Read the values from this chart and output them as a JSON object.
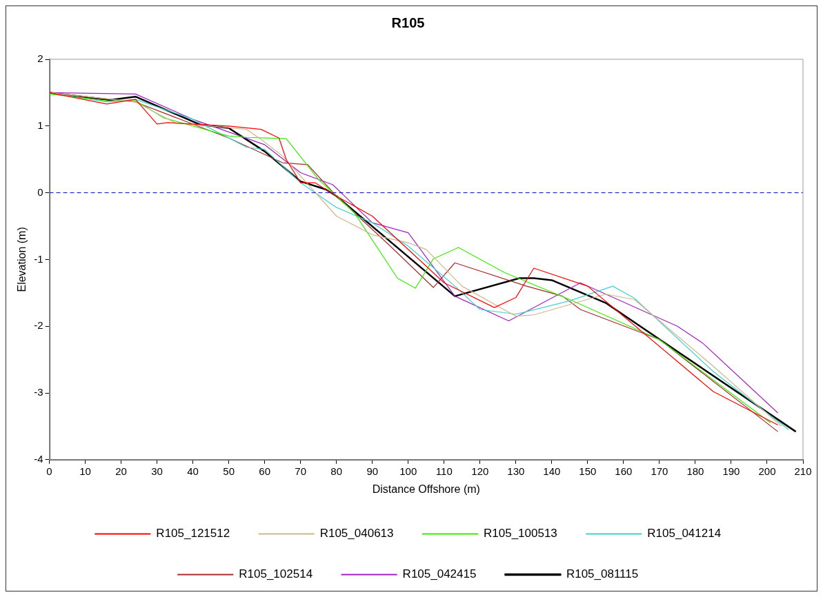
{
  "chart_data": {
    "type": "line",
    "title": "R105",
    "xlabel": "Distance Offshore (m)",
    "ylabel": "Elevation (m)",
    "xlim": [
      0,
      210
    ],
    "xticks": [
      0,
      10,
      20,
      30,
      40,
      50,
      60,
      70,
      80,
      90,
      100,
      110,
      120,
      130,
      140,
      150,
      160,
      170,
      180,
      190,
      200,
      210
    ],
    "ylim": [
      -4,
      2
    ],
    "yticks": [
      -4,
      -3,
      -2,
      -1,
      0,
      1,
      2
    ],
    "grid": false,
    "legend": "bottom",
    "marker": "none",
    "line_style": "solid",
    "ref_lines": [
      {
        "axis": "y",
        "value": 0,
        "color": "#0000c0",
        "line_style": "dashed"
      }
    ],
    "series": [
      {
        "name": "R105_121512",
        "color": "#ff0000",
        "x": [
          0,
          16,
          24,
          30,
          33,
          50,
          59,
          64,
          66,
          70,
          74,
          80,
          90,
          110,
          124,
          130,
          135,
          150,
          160,
          185,
          203
        ],
        "values": [
          1.5,
          1.33,
          1.4,
          1.03,
          1.05,
          1.0,
          0.95,
          0.82,
          0.5,
          0.15,
          0.15,
          -0.05,
          -0.35,
          -1.35,
          -1.72,
          -1.57,
          -1.13,
          -1.4,
          -1.85,
          -2.98,
          -3.48
        ]
      },
      {
        "name": "R105_040613",
        "color": "#d2b48c",
        "x": [
          0,
          24,
          35,
          55,
          59,
          65,
          80,
          90,
          100,
          105,
          115,
          130,
          135,
          155,
          163,
          185,
          204
        ],
        "values": [
          1.5,
          1.36,
          1.05,
          0.95,
          0.8,
          0.55,
          -0.35,
          -0.63,
          -0.75,
          -0.85,
          -1.4,
          -1.85,
          -1.83,
          -1.52,
          -1.6,
          -2.6,
          -3.5
        ]
      },
      {
        "name": "R105_100513",
        "color": "#33ee00",
        "x": [
          0,
          17,
          24,
          32,
          50,
          55,
          60,
          66,
          75,
          85,
          97,
          102,
          107,
          114,
          127,
          145,
          170,
          201
        ],
        "values": [
          1.48,
          1.37,
          1.38,
          1.12,
          0.85,
          0.83,
          0.82,
          0.81,
          0.2,
          -0.3,
          -1.28,
          -1.43,
          -0.99,
          -0.82,
          -1.2,
          -1.6,
          -2.2,
          -3.45
        ]
      },
      {
        "name": "R105_041214",
        "color": "#40d0d0",
        "x": [
          0,
          16,
          24,
          40,
          55,
          60,
          70,
          80,
          90,
          100,
          113,
          120,
          130,
          145,
          157,
          163,
          185,
          206
        ],
        "values": [
          1.5,
          1.36,
          1.4,
          1.1,
          0.68,
          0.65,
          0.15,
          -0.22,
          -0.45,
          -0.8,
          -1.4,
          -1.75,
          -1.82,
          -1.62,
          -1.4,
          -1.58,
          -2.68,
          -3.55
        ]
      },
      {
        "name": "R105_102514",
        "color": "#a52a2a",
        "x": [
          0,
          24,
          50,
          65,
          72,
          80,
          95,
          107,
          113,
          133,
          143,
          148,
          170,
          203
        ],
        "values": [
          1.5,
          1.36,
          0.82,
          0.45,
          0.42,
          -0.05,
          -0.8,
          -1.42,
          -1.05,
          -1.4,
          -1.55,
          -1.75,
          -2.2,
          -3.58
        ]
      },
      {
        "name": "R105_042415",
        "color": "#a020c0",
        "x": [
          0,
          24,
          40,
          60,
          70,
          79,
          90,
          100,
          113,
          128,
          148,
          175,
          182,
          203
        ],
        "values": [
          1.5,
          1.48,
          1.1,
          0.72,
          0.3,
          0.12,
          -0.45,
          -0.6,
          -1.55,
          -1.92,
          -1.35,
          -2.0,
          -2.25,
          -3.3
        ]
      },
      {
        "name": "R105_081115",
        "color": "#000000",
        "x": [
          0,
          17,
          24,
          42,
          50,
          60,
          70,
          77,
          80,
          113,
          131,
          135,
          140,
          155,
          208
        ],
        "values": [
          1.5,
          1.39,
          1.44,
          1.02,
          0.97,
          0.62,
          0.17,
          0.05,
          -0.05,
          -1.55,
          -1.28,
          -1.28,
          -1.31,
          -1.65,
          -3.58
        ]
      }
    ]
  }
}
